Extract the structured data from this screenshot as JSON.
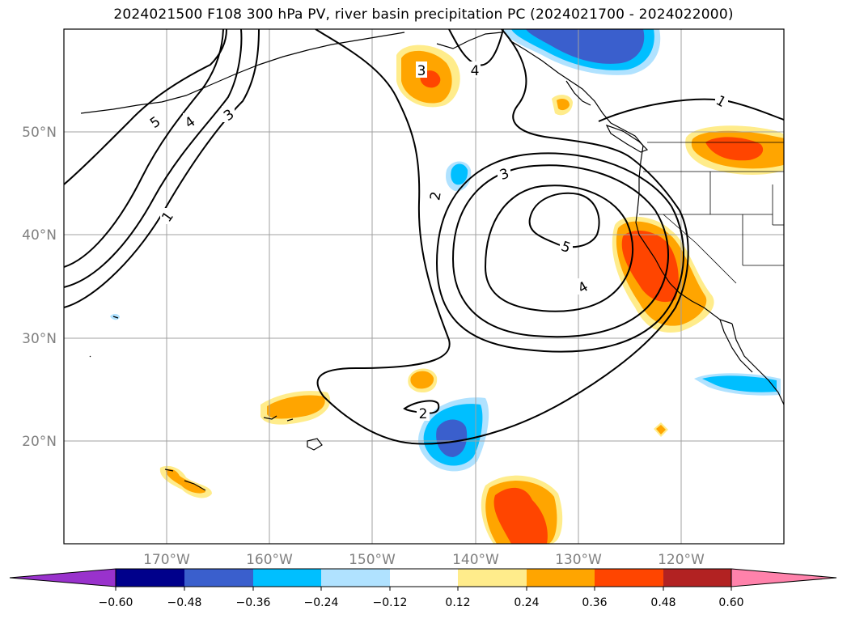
{
  "title": "2024021500 F108 300 hPa PV, river basin precipitation PC (2024021700 - 2024022000)",
  "map": {
    "projection": "plate carree",
    "lon_range": [
      -180,
      -110
    ],
    "lat_range": [
      10,
      60
    ],
    "gridlines": true,
    "lon_ticks": [
      {
        "lon": -170,
        "label": "170°W"
      },
      {
        "lon": -160,
        "label": "160°W"
      },
      {
        "lon": -150,
        "label": "150°W"
      },
      {
        "lon": -140,
        "label": "140°W"
      },
      {
        "lon": -130,
        "label": "130°W"
      },
      {
        "lon": -120,
        "label": "120°W"
      }
    ],
    "lat_ticks": [
      {
        "lat": 20,
        "label": "20°N"
      },
      {
        "lat": 30,
        "label": "30°N"
      },
      {
        "lat": 40,
        "label": "40°N"
      },
      {
        "lat": 50,
        "label": "50°N"
      }
    ],
    "contour_labels": [
      "5",
      "4",
      "3",
      "1",
      "3",
      "4",
      "3",
      "2",
      "5",
      "4",
      "2",
      "1"
    ]
  },
  "colorbar": {
    "colors": [
      "#9932CC",
      "#00008B",
      "#3A5FCD",
      "#00BFFF",
      "#B0E2FF",
      "#FFFFFF",
      "#FFEC8B",
      "#FFA500",
      "#FF4500",
      "#B22222",
      "#FF82AB"
    ],
    "labels": [
      "−0.60",
      "−0.48",
      "−0.36",
      "−0.24",
      "−0.12",
      "0.12",
      "0.24",
      "0.36",
      "0.48",
      "0.60"
    ]
  }
}
